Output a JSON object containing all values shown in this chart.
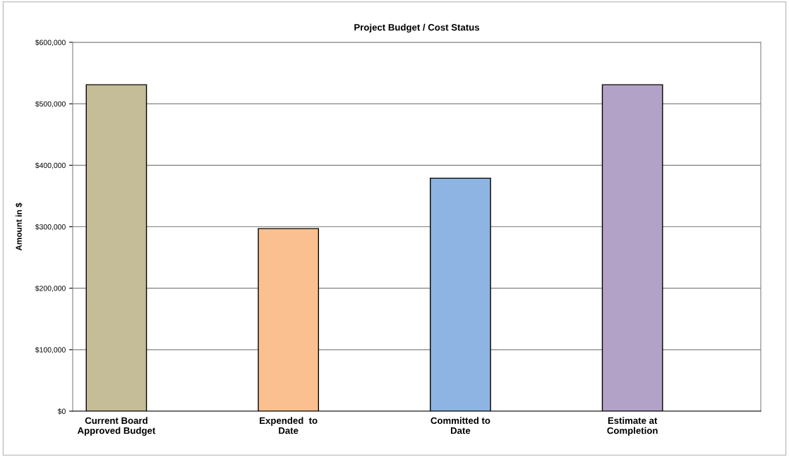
{
  "chart_data": {
    "type": "bar",
    "title": "Project Budget / Cost Status",
    "ylabel": "Amount in $",
    "categories": [
      "Current Board\nApproved Budget",
      "Expended  to\nDate",
      "Committed to\nDate",
      "Estimate at\nCompletion"
    ],
    "values": [
      531000,
      297000,
      379000,
      531000
    ],
    "colors": [
      "#c4bd97",
      "#fac090",
      "#8eb4e3",
      "#b3a2c7"
    ],
    "ylim": [
      0,
      600000
    ],
    "yticks": [
      {
        "value": 0,
        "label": "$0"
      },
      {
        "value": 100000,
        "label": "$100,000"
      },
      {
        "value": 200000,
        "label": "$200,000"
      },
      {
        "value": 300000,
        "label": "$300,000"
      },
      {
        "value": 400000,
        "label": "$400,000"
      },
      {
        "value": 500000,
        "label": "$500,000"
      },
      {
        "value": 600000,
        "label": "$600,000"
      }
    ],
    "grid": "y",
    "legend": false
  }
}
